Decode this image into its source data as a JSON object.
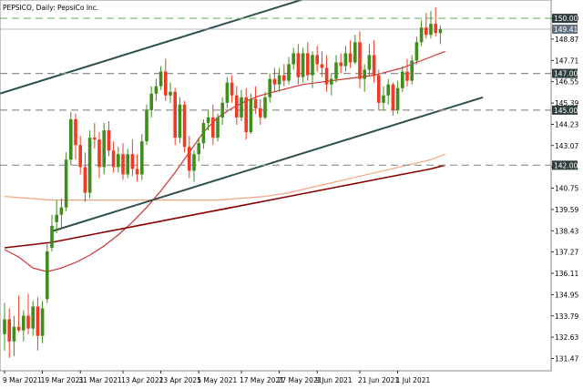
{
  "chart_data": {
    "type": "candlestick",
    "symbol_title": "PEPSICO, Daily:  PepsiCo Inc.",
    "ylim": [
      130.8,
      151.0
    ],
    "y_ticks": [
      150.0,
      148.87,
      147.71,
      146.55,
      145.39,
      144.23,
      143.07,
      141.91,
      140.75,
      139.59,
      138.43,
      137.27,
      136.11,
      134.95,
      133.79,
      132.63,
      131.47
    ],
    "x_tick_labels": [
      {
        "label": "9 Mar 2021",
        "index": 0
      },
      {
        "label": "19 Mar 2021",
        "index": 8
      },
      {
        "label": "31 Mar 2021",
        "index": 16
      },
      {
        "label": "13 Apr 2021",
        "index": 25
      },
      {
        "label": "23 Apr 2021",
        "index": 33
      },
      {
        "label": "5 May 2021",
        "index": 41
      },
      {
        "label": "17 May 2021",
        "index": 50
      },
      {
        "label": "27 May 2021",
        "index": 58
      },
      {
        "label": "9 Jun 2021",
        "index": 66
      },
      {
        "label": "21 Jun 2021",
        "index": 75
      },
      {
        "label": "1 Jul 2021",
        "index": 83
      }
    ],
    "candles": [
      {
        "o": 132.8,
        "h": 134.5,
        "l": 131.9,
        "c": 133.6
      },
      {
        "o": 133.6,
        "h": 134.2,
        "l": 131.5,
        "c": 132.4
      },
      {
        "o": 132.4,
        "h": 133.8,
        "l": 131.6,
        "c": 133.2
      },
      {
        "o": 133.2,
        "h": 134.9,
        "l": 132.9,
        "c": 133.0
      },
      {
        "o": 133.0,
        "h": 134.1,
        "l": 132.4,
        "c": 133.8
      },
      {
        "o": 133.8,
        "h": 135.0,
        "l": 132.8,
        "c": 133.1
      },
      {
        "o": 133.1,
        "h": 134.6,
        "l": 132.7,
        "c": 134.3
      },
      {
        "o": 134.3,
        "h": 134.8,
        "l": 131.9,
        "c": 132.7
      },
      {
        "o": 132.7,
        "h": 134.6,
        "l": 132.3,
        "c": 134.2
      },
      {
        "o": 134.7,
        "h": 137.7,
        "l": 134.5,
        "c": 137.3
      },
      {
        "o": 137.5,
        "h": 139.3,
        "l": 137.3,
        "c": 138.7
      },
      {
        "o": 138.9,
        "h": 140.1,
        "l": 138.3,
        "c": 139.3
      },
      {
        "o": 139.3,
        "h": 140.2,
        "l": 138.5,
        "c": 139.7
      },
      {
        "o": 139.7,
        "h": 142.7,
        "l": 139.5,
        "c": 142.3
      },
      {
        "o": 142.3,
        "h": 144.9,
        "l": 142.0,
        "c": 144.5
      },
      {
        "o": 144.5,
        "h": 144.8,
        "l": 142.3,
        "c": 143.1
      },
      {
        "o": 143.1,
        "h": 143.6,
        "l": 141.5,
        "c": 141.9
      },
      {
        "o": 141.9,
        "h": 142.7,
        "l": 140.0,
        "c": 140.5
      },
      {
        "o": 140.5,
        "h": 143.9,
        "l": 140.2,
        "c": 143.5
      },
      {
        "o": 143.5,
        "h": 144.3,
        "l": 142.9,
        "c": 143.4
      },
      {
        "o": 143.4,
        "h": 143.8,
        "l": 141.3,
        "c": 141.9
      },
      {
        "o": 141.9,
        "h": 144.3,
        "l": 141.5,
        "c": 143.9
      },
      {
        "o": 143.9,
        "h": 144.4,
        "l": 142.5,
        "c": 142.8
      },
      {
        "o": 142.8,
        "h": 143.3,
        "l": 141.6,
        "c": 141.9
      },
      {
        "o": 141.9,
        "h": 143.0,
        "l": 141.6,
        "c": 142.6
      },
      {
        "o": 142.6,
        "h": 143.2,
        "l": 141.2,
        "c": 141.5
      },
      {
        "o": 141.5,
        "h": 142.9,
        "l": 141.3,
        "c": 142.6
      },
      {
        "o": 142.6,
        "h": 143.4,
        "l": 141.4,
        "c": 141.8
      },
      {
        "o": 141.8,
        "h": 142.6,
        "l": 141.1,
        "c": 141.5
      },
      {
        "o": 141.5,
        "h": 143.7,
        "l": 141.2,
        "c": 143.3
      },
      {
        "o": 143.3,
        "h": 145.3,
        "l": 143.1,
        "c": 145.0
      },
      {
        "o": 145.0,
        "h": 146.3,
        "l": 144.6,
        "c": 145.9
      },
      {
        "o": 145.9,
        "h": 146.7,
        "l": 145.5,
        "c": 146.3
      },
      {
        "o": 146.3,
        "h": 147.4,
        "l": 146.1,
        "c": 147.1
      },
      {
        "o": 147.1,
        "h": 147.8,
        "l": 145.5,
        "c": 145.8
      },
      {
        "o": 145.8,
        "h": 146.5,
        "l": 145.4,
        "c": 146.0
      },
      {
        "o": 146.0,
        "h": 146.2,
        "l": 143.1,
        "c": 143.5
      },
      {
        "o": 143.5,
        "h": 145.7,
        "l": 143.2,
        "c": 145.3
      },
      {
        "o": 145.3,
        "h": 145.5,
        "l": 142.7,
        "c": 143.0
      },
      {
        "o": 143.0,
        "h": 143.6,
        "l": 141.3,
        "c": 141.7
      },
      {
        "o": 141.7,
        "h": 142.8,
        "l": 141.1,
        "c": 142.6
      },
      {
        "o": 142.6,
        "h": 143.5,
        "l": 142.2,
        "c": 143.2
      },
      {
        "o": 143.2,
        "h": 144.5,
        "l": 142.9,
        "c": 144.3
      },
      {
        "o": 144.3,
        "h": 145.0,
        "l": 143.9,
        "c": 144.6
      },
      {
        "o": 144.6,
        "h": 145.3,
        "l": 143.1,
        "c": 143.5
      },
      {
        "o": 143.5,
        "h": 144.8,
        "l": 143.3,
        "c": 144.6
      },
      {
        "o": 144.6,
        "h": 145.7,
        "l": 144.2,
        "c": 145.4
      },
      {
        "o": 145.4,
        "h": 146.8,
        "l": 145.1,
        "c": 146.5
      },
      {
        "o": 146.5,
        "h": 146.9,
        "l": 145.4,
        "c": 145.8
      },
      {
        "o": 145.8,
        "h": 146.3,
        "l": 144.2,
        "c": 144.6
      },
      {
        "o": 144.6,
        "h": 146.1,
        "l": 144.4,
        "c": 145.7
      },
      {
        "o": 145.7,
        "h": 146.2,
        "l": 143.4,
        "c": 143.8
      },
      {
        "o": 143.8,
        "h": 145.9,
        "l": 143.7,
        "c": 145.6
      },
      {
        "o": 145.6,
        "h": 146.3,
        "l": 144.8,
        "c": 145.1
      },
      {
        "o": 145.1,
        "h": 145.6,
        "l": 144.2,
        "c": 144.6
      },
      {
        "o": 144.6,
        "h": 146.0,
        "l": 144.5,
        "c": 145.7
      },
      {
        "o": 145.7,
        "h": 147.0,
        "l": 145.4,
        "c": 146.7
      },
      {
        "o": 146.7,
        "h": 147.3,
        "l": 146.0,
        "c": 146.4
      },
      {
        "o": 146.4,
        "h": 147.3,
        "l": 146.0,
        "c": 146.9
      },
      {
        "o": 146.9,
        "h": 147.5,
        "l": 146.3,
        "c": 146.6
      },
      {
        "o": 146.6,
        "h": 147.9,
        "l": 146.4,
        "c": 147.5
      },
      {
        "o": 147.5,
        "h": 148.4,
        "l": 147.2,
        "c": 148.1
      },
      {
        "o": 148.1,
        "h": 148.6,
        "l": 146.4,
        "c": 146.8
      },
      {
        "o": 146.8,
        "h": 148.4,
        "l": 146.5,
        "c": 148.1
      },
      {
        "o": 148.1,
        "h": 148.7,
        "l": 146.6,
        "c": 146.9
      },
      {
        "o": 146.9,
        "h": 148.2,
        "l": 146.2,
        "c": 148.0
      },
      {
        "o": 148.0,
        "h": 148.5,
        "l": 147.1,
        "c": 147.5
      },
      {
        "o": 147.5,
        "h": 148.2,
        "l": 146.8,
        "c": 147.3
      },
      {
        "o": 147.3,
        "h": 148.0,
        "l": 146.0,
        "c": 146.4
      },
      {
        "o": 146.4,
        "h": 147.0,
        "l": 145.8,
        "c": 146.7
      },
      {
        "o": 146.7,
        "h": 148.0,
        "l": 146.5,
        "c": 147.6
      },
      {
        "o": 147.6,
        "h": 148.1,
        "l": 147.0,
        "c": 147.4
      },
      {
        "o": 147.4,
        "h": 148.5,
        "l": 147.1,
        "c": 148.1
      },
      {
        "o": 148.1,
        "h": 148.8,
        "l": 147.3,
        "c": 147.6
      },
      {
        "o": 147.6,
        "h": 149.1,
        "l": 147.5,
        "c": 148.7
      },
      {
        "o": 148.7,
        "h": 149.3,
        "l": 146.2,
        "c": 146.7
      },
      {
        "o": 146.7,
        "h": 147.5,
        "l": 146.0,
        "c": 147.2
      },
      {
        "o": 147.2,
        "h": 148.6,
        "l": 146.9,
        "c": 148.0
      },
      {
        "o": 148.0,
        "h": 148.8,
        "l": 146.5,
        "c": 146.9
      },
      {
        "o": 146.9,
        "h": 147.2,
        "l": 145.0,
        "c": 145.4
      },
      {
        "o": 145.4,
        "h": 146.3,
        "l": 145.0,
        "c": 145.8
      },
      {
        "o": 145.8,
        "h": 146.7,
        "l": 145.3,
        "c": 146.4
      },
      {
        "o": 146.4,
        "h": 146.5,
        "l": 144.7,
        "c": 145.0
      },
      {
        "o": 145.0,
        "h": 146.6,
        "l": 144.8,
        "c": 146.2
      },
      {
        "o": 146.2,
        "h": 147.4,
        "l": 146.0,
        "c": 147.1
      },
      {
        "o": 147.1,
        "h": 147.8,
        "l": 146.3,
        "c": 146.6
      },
      {
        "o": 146.6,
        "h": 148.0,
        "l": 146.4,
        "c": 147.7
      },
      {
        "o": 147.7,
        "h": 149.0,
        "l": 147.5,
        "c": 148.7
      },
      {
        "o": 148.7,
        "h": 149.9,
        "l": 148.5,
        "c": 149.5
      },
      {
        "o": 149.5,
        "h": 150.3,
        "l": 148.9,
        "c": 149.1
      },
      {
        "o": 149.1,
        "h": 150.4,
        "l": 148.9,
        "c": 149.7
      },
      {
        "o": 149.7,
        "h": 150.6,
        "l": 149.0,
        "c": 149.2
      },
      {
        "o": 149.2,
        "h": 149.6,
        "l": 148.6,
        "c": 149.4
      }
    ],
    "moving_averages": [
      {
        "color": "#cc3333",
        "points": [
          [
            0,
            137.4
          ],
          [
            3,
            137.0
          ],
          [
            6,
            136.4
          ],
          [
            9,
            136.2
          ],
          [
            12,
            136.4
          ],
          [
            15,
            136.7
          ],
          [
            18,
            137.1
          ],
          [
            21,
            137.6
          ],
          [
            24,
            138.2
          ],
          [
            27,
            138.9
          ],
          [
            30,
            139.7
          ],
          [
            33,
            140.6
          ],
          [
            36,
            141.6
          ],
          [
            39,
            142.7
          ],
          [
            42,
            143.8
          ],
          [
            45,
            144.6
          ],
          [
            48,
            145.1
          ],
          [
            51,
            145.5
          ],
          [
            54,
            145.8
          ],
          [
            57,
            146.0
          ],
          [
            60,
            146.2
          ],
          [
            63,
            146.4
          ],
          [
            66,
            146.5
          ],
          [
            69,
            146.6
          ],
          [
            72,
            146.7
          ],
          [
            75,
            146.8
          ],
          [
            78,
            146.9
          ],
          [
            81,
            147.1
          ],
          [
            84,
            147.3
          ],
          [
            87,
            147.6
          ],
          [
            90,
            147.9
          ],
          [
            93,
            148.2
          ]
        ]
      },
      {
        "color": "#f4a582",
        "points": [
          [
            0,
            140.3
          ],
          [
            5,
            140.2
          ],
          [
            10,
            140.1
          ],
          [
            15,
            140.1
          ],
          [
            20,
            140.1
          ],
          [
            25,
            140.1
          ],
          [
            30,
            140.1
          ],
          [
            35,
            140.1
          ],
          [
            40,
            140.1
          ],
          [
            45,
            140.1
          ],
          [
            50,
            140.2
          ],
          [
            55,
            140.3
          ],
          [
            60,
            140.5
          ],
          [
            65,
            140.8
          ],
          [
            70,
            141.1
          ],
          [
            75,
            141.4
          ],
          [
            80,
            141.7
          ],
          [
            85,
            142.0
          ],
          [
            90,
            142.3
          ],
          [
            93,
            142.6
          ]
        ]
      },
      {
        "color": "#8b0000",
        "points": [
          [
            0,
            137.5
          ],
          [
            10,
            137.8
          ],
          [
            20,
            138.3
          ],
          [
            30,
            138.8
          ],
          [
            40,
            139.3
          ],
          [
            50,
            139.8
          ],
          [
            60,
            140.3
          ],
          [
            70,
            140.8
          ],
          [
            80,
            141.3
          ],
          [
            90,
            141.8
          ],
          [
            93,
            142.0
          ]
        ]
      }
    ],
    "trendlines": [
      {
        "points": [
          [
            -1,
            145.9
          ],
          [
            90,
            153.2
          ]
        ],
        "color": "#2f4f4f"
      },
      {
        "points": [
          [
            10,
            138.4
          ],
          [
            101,
            145.7
          ]
        ],
        "color": "#2f4f4f"
      }
    ],
    "levels": [
      {
        "value": 150.0,
        "label": "150.00",
        "style": "dash-green"
      },
      {
        "value": 147.0,
        "label": "147.00",
        "style": "dash-gray"
      },
      {
        "value": 145.0,
        "label": "145.00",
        "style": "dash-gray"
      },
      {
        "value": 142.0,
        "label": "142.00",
        "style": "dash-gray"
      }
    ],
    "current_price": {
      "value": 149.41,
      "label": "149.41"
    },
    "colors": {
      "up": "#3f8d1b",
      "down": "#ef3b24",
      "level_green": "#7fbf7f",
      "level_gray": "#909090",
      "current_label_bg": "#607080",
      "level_label_bg": "#2f3f3f"
    }
  }
}
